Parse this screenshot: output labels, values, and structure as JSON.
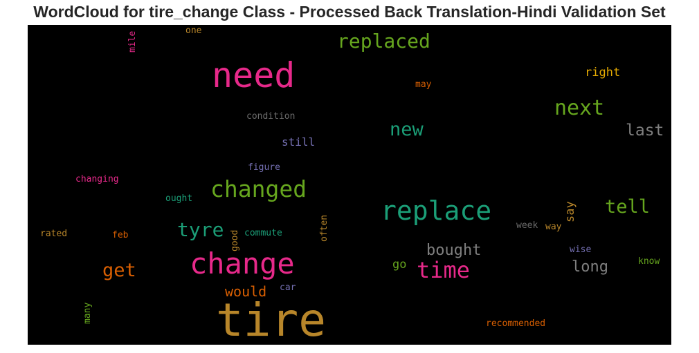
{
  "chart_data": {
    "type": "wordcloud",
    "title": "WordCloud for tire_change Class - Processed Back Translation-Hindi Validation Set",
    "background": "#000000",
    "words": [
      {
        "text": "tire",
        "color": "#b8862a"
      },
      {
        "text": "need",
        "color": "#e7298a"
      },
      {
        "text": "change",
        "color": "#e7298a"
      },
      {
        "text": "replace",
        "color": "#1b9e77"
      },
      {
        "text": "changed",
        "color": "#66a61e"
      },
      {
        "text": "replaced",
        "color": "#66a61e"
      },
      {
        "text": "next",
        "color": "#66a61e"
      },
      {
        "text": "time",
        "color": "#e7298a"
      },
      {
        "text": "new",
        "color": "#1b9e77"
      },
      {
        "text": "tyre",
        "color": "#1b9e77"
      },
      {
        "text": "tell",
        "color": "#66a61e"
      },
      {
        "text": "get",
        "color": "#d95f02"
      },
      {
        "text": "last",
        "color": "#7f7f7f"
      },
      {
        "text": "bought",
        "color": "#7f7f7f"
      },
      {
        "text": "long",
        "color": "#7f7f7f"
      },
      {
        "text": "would",
        "color": "#d95f02"
      },
      {
        "text": "right",
        "color": "#e6ab02"
      },
      {
        "text": "say",
        "color": "#b8862a"
      },
      {
        "text": "go",
        "color": "#66a61e"
      },
      {
        "text": "still",
        "color": "#7570b3"
      },
      {
        "text": "condition",
        "color": "#6b6b6b"
      },
      {
        "text": "figure",
        "color": "#7570b3"
      },
      {
        "text": "changing",
        "color": "#e7298a"
      },
      {
        "text": "ought",
        "color": "#1b9e77"
      },
      {
        "text": "commute",
        "color": "#1b9e77"
      },
      {
        "text": "rated",
        "color": "#b8862a"
      },
      {
        "text": "feb",
        "color": "#d95f02"
      },
      {
        "text": "good",
        "color": "#b8862a"
      },
      {
        "text": "often",
        "color": "#b8862a"
      },
      {
        "text": "week",
        "color": "#6b6b6b"
      },
      {
        "text": "way",
        "color": "#b8862a"
      },
      {
        "text": "wise",
        "color": "#7570b3"
      },
      {
        "text": "know",
        "color": "#66a61e"
      },
      {
        "text": "car",
        "color": "#7570b3"
      },
      {
        "text": "many",
        "color": "#66a61e"
      },
      {
        "text": "recommended",
        "color": "#d95f02"
      },
      {
        "text": "may",
        "color": "#d95f02"
      },
      {
        "text": "one",
        "color": "#b8862a"
      },
      {
        "text": "mile",
        "color": "#e7298a"
      }
    ]
  }
}
